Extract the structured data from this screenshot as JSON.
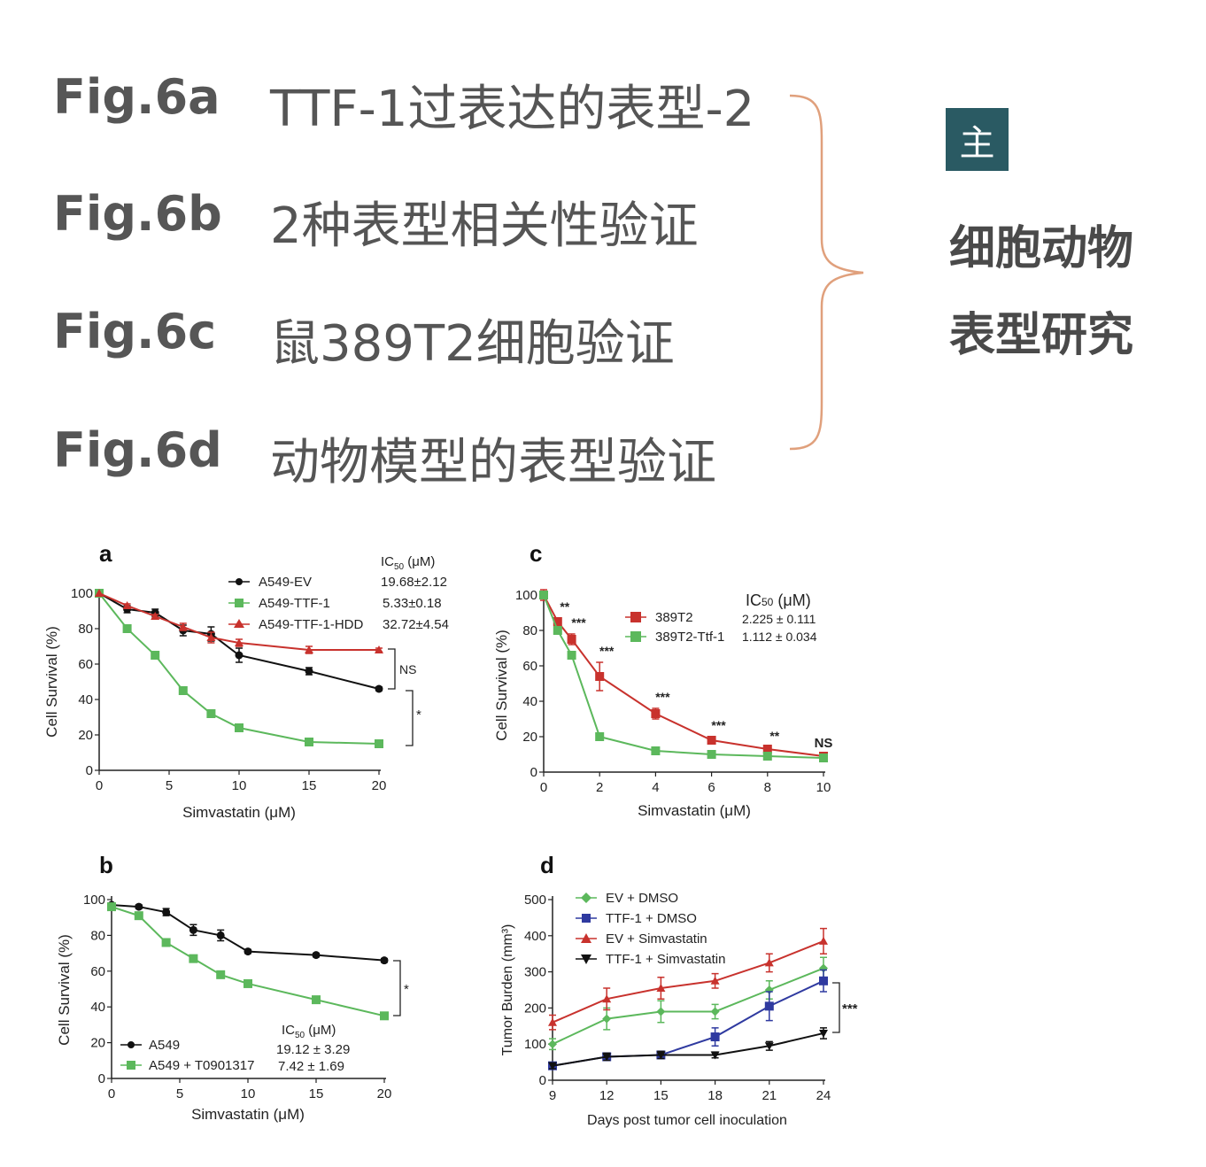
{
  "outline": [
    {
      "label": "Fig.6a",
      "desc": "TTF-1过表达的表型-2"
    },
    {
      "label": "Fig.6b",
      "desc": "2种表型相关性验证"
    },
    {
      "label": "Fig.6c",
      "desc": "鼠389T2细胞验证"
    },
    {
      "label": "Fig.6d",
      "desc": "动物模型的表型验证"
    }
  ],
  "side": {
    "badge": "主",
    "line1": "细胞动物",
    "line2": "表型研究"
  },
  "colors": {
    "black": "#111111",
    "green": "#5cb85c",
    "red": "#c8322d",
    "blue": "#2f3aa0",
    "brace": "#e0a07c",
    "badge": "#2a5a63"
  },
  "chart_data": [
    {
      "panel": "a",
      "type": "line",
      "xlabel": "Simvastatin (μM)",
      "ylabel": "Cell Survival (%)",
      "xlim": [
        0,
        20
      ],
      "ylim": [
        0,
        100
      ],
      "xticks": [
        0,
        5,
        10,
        15,
        20
      ],
      "yticks": [
        0,
        20,
        40,
        60,
        80,
        100
      ],
      "legend_title": "IC50 (μM)",
      "legend_position": "top-right",
      "series": [
        {
          "name": "A549-EV",
          "ic50": "19.68±2.12",
          "color": "#111111",
          "marker": "circle",
          "x": [
            0,
            2,
            4,
            6,
            8,
            10,
            15,
            20
          ],
          "y": [
            100,
            91,
            89,
            79,
            77,
            65,
            56,
            46
          ],
          "err": [
            0,
            2,
            2,
            3,
            4,
            4,
            2,
            1
          ]
        },
        {
          "name": "A549-TTF-1",
          "ic50": "5.33±0.18",
          "color": "#5cb85c",
          "marker": "square",
          "x": [
            0,
            2,
            4,
            6,
            8,
            10,
            15,
            20
          ],
          "y": [
            100,
            80,
            65,
            45,
            32,
            24,
            16,
            15
          ],
          "err": [
            0,
            1,
            1,
            1,
            1,
            1,
            1,
            1
          ]
        },
        {
          "name": "A549-TTF-1-HDD",
          "ic50": "32.72±4.54",
          "color": "#c8322d",
          "marker": "triangle",
          "x": [
            0,
            2,
            4,
            6,
            8,
            10,
            15,
            20
          ],
          "y": [
            100,
            93,
            87,
            81,
            75,
            72,
            68,
            68
          ],
          "err": [
            0,
            1,
            1,
            2,
            3,
            2,
            2,
            1
          ]
        }
      ],
      "annotations": [
        {
          "text": "NS"
        },
        {
          "text": "*"
        }
      ]
    },
    {
      "panel": "b",
      "type": "line",
      "xlabel": "Simvastatin (μM)",
      "ylabel": "Cell Survival (%)",
      "xlim": [
        0,
        20
      ],
      "ylim": [
        0,
        100
      ],
      "xticks": [
        0,
        5,
        10,
        15,
        20
      ],
      "yticks": [
        0,
        20,
        40,
        60,
        80,
        100
      ],
      "legend_title": "IC50 (μM)",
      "legend_position": "bottom-left",
      "series": [
        {
          "name": "A549",
          "ic50": "19.12 ± 3.29",
          "color": "#111111",
          "marker": "circle",
          "x": [
            0,
            2,
            4,
            6,
            8,
            10,
            15,
            20
          ],
          "y": [
            97,
            96,
            93,
            83,
            80,
            71,
            69,
            66
          ],
          "err": [
            0,
            1,
            2,
            3,
            3,
            1,
            1,
            1
          ]
        },
        {
          "name": "A549 + T0901317",
          "ic50": "7.42 ± 1.69",
          "color": "#5cb85c",
          "marker": "square",
          "x": [
            0,
            2,
            4,
            6,
            8,
            10,
            15,
            20
          ],
          "y": [
            96,
            91,
            76,
            67,
            58,
            53,
            44,
            35
          ],
          "err": [
            0,
            1,
            1,
            1,
            1,
            1,
            1,
            1
          ]
        }
      ],
      "annotations": [
        {
          "text": "*"
        }
      ]
    },
    {
      "panel": "c",
      "type": "line",
      "xlabel": "Simvastatin (μM)",
      "ylabel": "Cell Survival (%)",
      "xlim": [
        0,
        10
      ],
      "ylim": [
        0,
        100
      ],
      "xticks": [
        0,
        2,
        4,
        6,
        8,
        10
      ],
      "yticks": [
        0,
        20,
        40,
        60,
        80,
        100
      ],
      "legend_title": "IC50 (μM)",
      "legend_position": "top-right",
      "series": [
        {
          "name": "389T2",
          "ic50": "2.225 ± 0.111",
          "color": "#c8322d",
          "marker": "square",
          "x": [
            0,
            0.5,
            1,
            2,
            4,
            6,
            8,
            10
          ],
          "y": [
            100,
            85,
            75,
            54,
            33,
            18,
            13,
            9
          ],
          "err": [
            3,
            2,
            3,
            8,
            3,
            2,
            1,
            1
          ]
        },
        {
          "name": "389T2-Ttf-1",
          "ic50": "1.112 ± 0.034",
          "color": "#5cb85c",
          "marker": "square",
          "x": [
            0,
            0.5,
            1,
            2,
            4,
            6,
            8,
            10
          ],
          "y": [
            100,
            80,
            66,
            20,
            12,
            10,
            9,
            8
          ],
          "err": [
            2,
            2,
            2,
            1,
            1,
            1,
            1,
            1
          ]
        }
      ],
      "annotations": [
        {
          "x": 0.5,
          "text": "**"
        },
        {
          "x": 1,
          "text": "***"
        },
        {
          "x": 2,
          "text": "***"
        },
        {
          "x": 4,
          "text": "***"
        },
        {
          "x": 6,
          "text": "***"
        },
        {
          "x": 8,
          "text": "**"
        },
        {
          "x": 10,
          "text": "NS"
        }
      ]
    },
    {
      "panel": "d",
      "type": "line",
      "xlabel": "Days post tumor cell inoculation",
      "ylabel": "Tumor Burden (mm³)",
      "xlim": [
        9,
        24
      ],
      "ylim": [
        0,
        500
      ],
      "xticks": [
        9,
        12,
        15,
        18,
        21,
        24
      ],
      "yticks": [
        0,
        100,
        200,
        300,
        400,
        500
      ],
      "legend_position": "top-left",
      "series": [
        {
          "name": "EV + DMSO",
          "color": "#5cb85c",
          "marker": "diamond",
          "x": [
            9,
            12,
            15,
            18,
            21,
            24
          ],
          "y": [
            100,
            170,
            190,
            190,
            250,
            310
          ],
          "err": [
            15,
            30,
            30,
            20,
            25,
            30
          ]
        },
        {
          "name": "TTF-1 + DMSO",
          "color": "#2f3aa0",
          "marker": "square",
          "x": [
            9,
            12,
            15,
            18,
            21,
            24
          ],
          "y": [
            40,
            65,
            70,
            120,
            205,
            275
          ],
          "err": [
            8,
            10,
            10,
            25,
            40,
            30
          ]
        },
        {
          "name": "EV + Simvastatin",
          "color": "#c8322d",
          "marker": "triangle",
          "x": [
            9,
            12,
            15,
            18,
            21,
            24
          ],
          "y": [
            160,
            225,
            255,
            275,
            325,
            385
          ],
          "err": [
            20,
            30,
            30,
            20,
            25,
            35
          ]
        },
        {
          "name": "TTF-1 + Simvastatin",
          "color": "#111111",
          "marker": "triangle-down",
          "x": [
            9,
            12,
            15,
            18,
            21,
            24
          ],
          "y": [
            40,
            65,
            70,
            70,
            95,
            130
          ],
          "err": [
            8,
            10,
            10,
            8,
            12,
            15
          ]
        }
      ],
      "annotations": [
        {
          "text": "***"
        }
      ]
    }
  ]
}
